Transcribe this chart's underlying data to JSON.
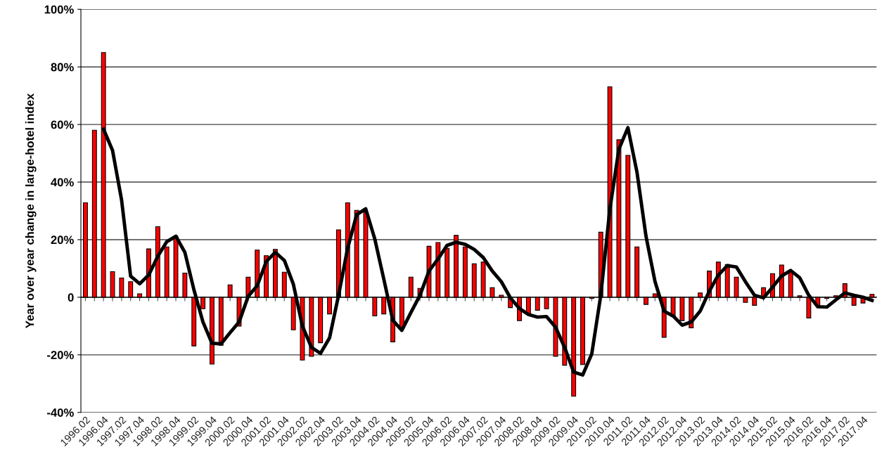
{
  "chart_data": {
    "type": "bar",
    "ylabel": "Year over year change in large-hotel index",
    "categories": [
      "1996.02",
      null,
      "1996.04",
      null,
      "1997.02",
      null,
      "1997.04",
      null,
      "1998.02",
      null,
      "1998.04",
      null,
      "1999.02",
      null,
      "1999.04",
      null,
      "2000.02",
      null,
      "2000.04",
      null,
      "2001.02",
      null,
      "2001.04",
      null,
      "2002.02",
      null,
      "2002.04",
      null,
      "2003.02",
      null,
      "2003.04",
      null,
      "2004.02",
      null,
      "2004.04",
      null,
      "2005.02",
      null,
      "2005.04",
      null,
      "2006.02",
      null,
      "2006.04",
      null,
      "2007.02",
      null,
      "2007.04",
      null,
      "2008.02",
      null,
      "2008.04",
      null,
      "2009.02",
      null,
      "2009.04",
      null,
      "2010.02",
      null,
      "2010.04",
      null,
      "2011.02",
      null,
      "2011.04",
      null,
      "2012.02",
      null,
      "2012.04",
      null,
      "2013.02",
      null,
      "2013.04",
      null,
      "2014.02",
      null,
      "2014.04",
      null,
      "2015.02",
      null,
      "2015.04",
      null,
      "2016.02",
      null,
      "2016.04",
      null,
      "2017.02",
      null,
      "2017.04",
      null
    ],
    "series": [
      {
        "type": "bar",
        "color": "#ff0000",
        "values": [
          32.8,
          58,
          85,
          8.9,
          6.7,
          5.4,
          1.2,
          16.8,
          24.5,
          17.5,
          21.2,
          8.4,
          -16.9,
          -4,
          -23.2,
          -16.7,
          4.3,
          -10,
          7.0,
          16.4,
          14.4,
          16.6,
          8.7,
          -11.3,
          -21.8,
          -20.5,
          -15.8,
          -5.8,
          23.4,
          32.8,
          30.2,
          29.6,
          -6.5,
          -5.8,
          -15.5,
          -10.6,
          7.0,
          3.1,
          17.7,
          19.0,
          17.0,
          21.5,
          17.5,
          11.6,
          12.2,
          3.3,
          0.7,
          -3.6,
          -8.1,
          -6,
          -4.5,
          -4,
          -20.5,
          -23.6,
          -34.4,
          -23.4,
          -0.4,
          22.6,
          73.1,
          54.7,
          49.3,
          17.5,
          -2.5,
          1.2,
          -13.9,
          -6.7,
          -8.1,
          -10.6,
          1.5,
          9.1,
          12.2,
          11.4,
          7.0,
          -1.8,
          -2.8,
          3.3,
          8.2,
          11.2,
          8.7,
          0.5,
          -7.2,
          -3.0,
          -0.4,
          0.5,
          4.7,
          -2.8,
          -2.0,
          1.0
        ]
      },
      {
        "type": "line",
        "color": "#000000",
        "values": [
          null,
          null,
          58.4,
          51,
          33.8,
          7.3,
          4.7,
          7.7,
          14.2,
          19.3,
          21.2,
          15.6,
          2.6,
          -8.6,
          -16,
          -16.2,
          -12.3,
          -8.6,
          0.3,
          4.0,
          12.4,
          15.6,
          12.8,
          4.5,
          -10,
          -17.4,
          -19.5,
          -14.1,
          0.7,
          17,
          28.7,
          30.7,
          20.3,
          6.3,
          -8,
          -11.5,
          -5.3,
          0.7,
          9.1,
          13.3,
          18,
          19.1,
          18.4,
          16.6,
          13.8,
          9.1,
          5.4,
          -0.2,
          -3.9,
          -6,
          -6.9,
          -6.7,
          -10.4,
          -17.4,
          -26,
          -27,
          -19.7,
          0.7,
          30.5,
          51.4,
          58.9,
          43.5,
          21.2,
          5.4,
          -4.8,
          -6.5,
          -9.7,
          -8.6,
          -4.8,
          2.1,
          7.7,
          11,
          10.5,
          5.4,
          0.7,
          -0.2,
          3.5,
          7.4,
          9.3,
          6.8,
          0.7,
          -3.3,
          -3.4,
          -0.9,
          1.5,
          0.7,
          0,
          -1.1
        ]
      }
    ],
    "ylim": [
      -40,
      100
    ],
    "yticks": [
      {
        "value": -40,
        "label": "-40%"
      },
      {
        "value": -20,
        "label": "-20%"
      },
      {
        "value": 0,
        "label": "0"
      },
      {
        "value": 20,
        "label": "20%"
      },
      {
        "value": 40,
        "label": "40%"
      },
      {
        "value": 60,
        "label": "60%"
      },
      {
        "value": 80,
        "label": "80%"
      },
      {
        "value": 100,
        "label": "100%"
      }
    ],
    "grid": "y",
    "legend": false,
    "marker": "none",
    "line_style": "solid"
  }
}
